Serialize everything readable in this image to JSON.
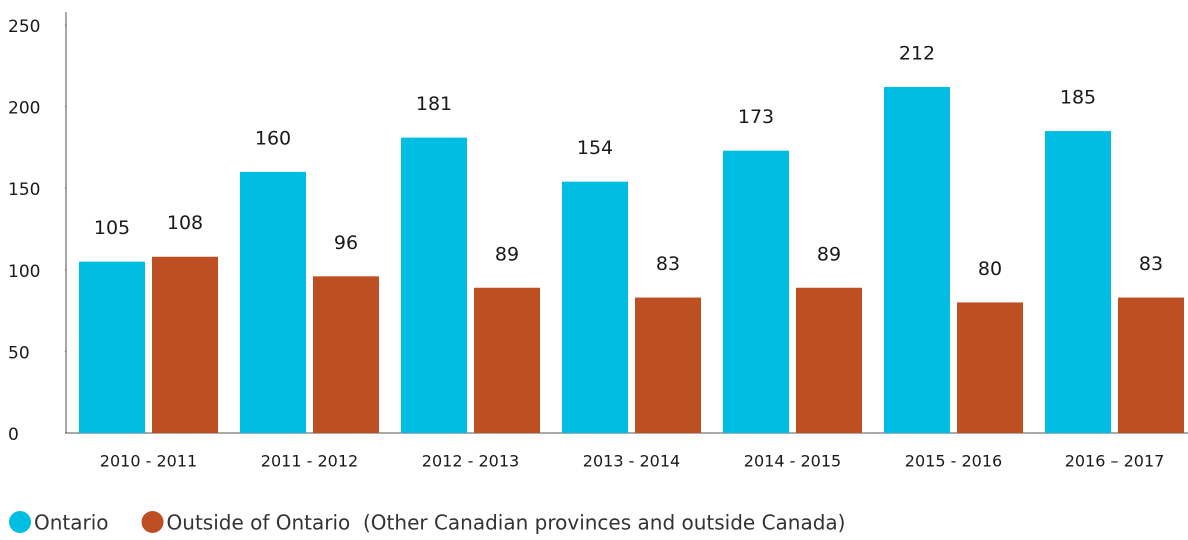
{
  "chart_data": {
    "type": "bar",
    "categories": [
      "2010 - 2011",
      "2011 - 2012",
      "2012 - 2013",
      "2013 - 2014",
      "2014 - 2015",
      "2015 - 2016",
      "2016 – 2017"
    ],
    "series": [
      {
        "name": "Ontario",
        "color": "#00bde3",
        "values": [
          105,
          160,
          181,
          154,
          173,
          212,
          185
        ]
      },
      {
        "name": "Outside of Ontario  (Other Canadian provinces and outside Canada)",
        "color": "#bd4f22",
        "values": [
          108,
          96,
          89,
          83,
          89,
          80,
          83
        ]
      }
    ],
    "ylim": [
      0,
      250
    ],
    "yticks": [
      0,
      50,
      100,
      150,
      200,
      250
    ],
    "grid": false,
    "legend": "bottom-left",
    "data_labels": true
  }
}
